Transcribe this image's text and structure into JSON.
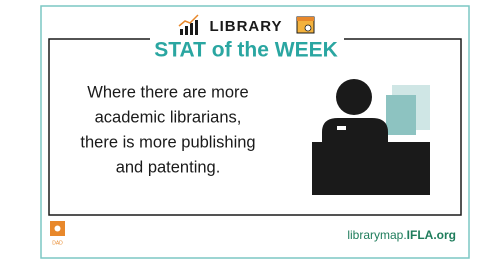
{
  "header": {
    "kicker": "LIBRARY",
    "title": "STAT of the WEEK"
  },
  "body": {
    "lines": [
      "Where there are more",
      "academic librarians,",
      "there is more publishing",
      "and patenting."
    ]
  },
  "footer": {
    "logo_label": "DAD",
    "url_prefix": "librarymap.",
    "url_domain": "IFLA.org"
  }
}
